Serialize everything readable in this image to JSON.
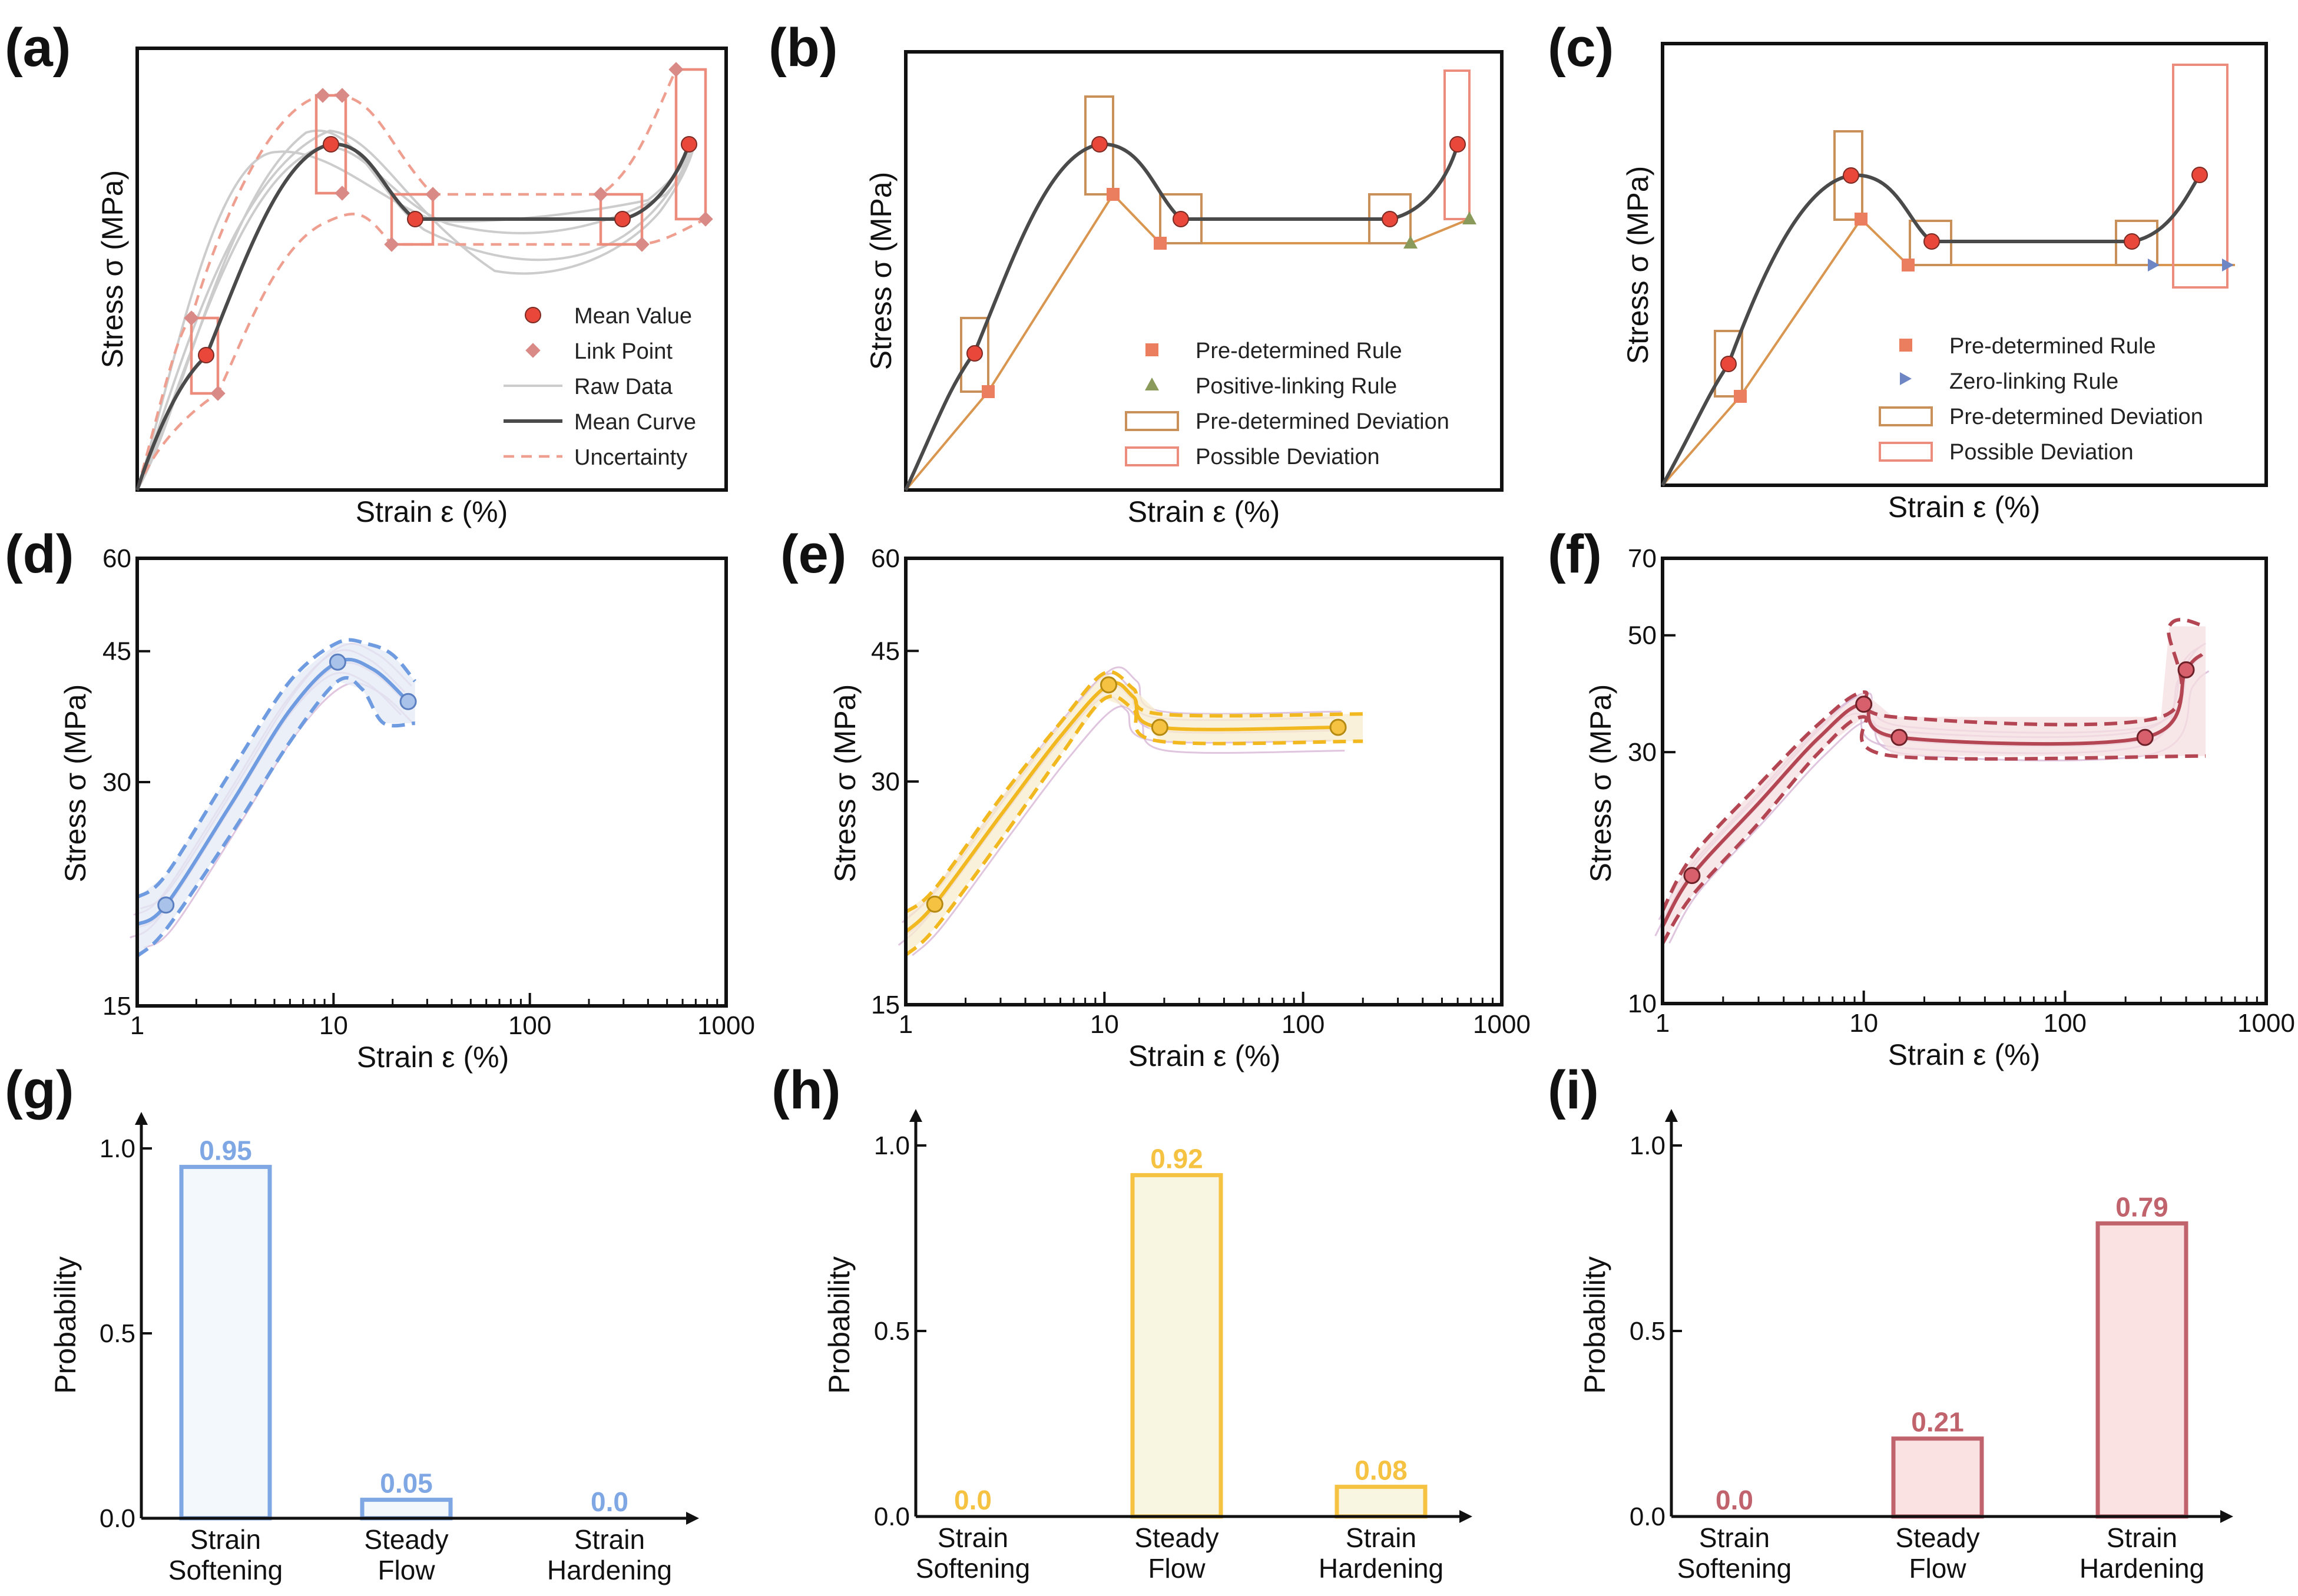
{
  "panels": {
    "a": {
      "label": "(a)",
      "xlabel": "Strain ε (%)",
      "ylabel": "Stress σ (MPa)",
      "legend": [
        "Mean Value",
        "Link Point",
        "Raw Data",
        "Mean Curve",
        "Uncertainty"
      ]
    },
    "b": {
      "label": "(b)",
      "xlabel": "Strain ε (%)",
      "ylabel": "Stress σ (MPa)",
      "legend": [
        "Pre-determined Rule",
        "Positive-linking Rule",
        "Pre-determined Deviation",
        "Possible Deviation"
      ]
    },
    "c": {
      "label": "(c)",
      "xlabel": "Strain ε (%)",
      "ylabel": "Stress σ (MPa)",
      "legend": [
        "Pre-determined Rule",
        "Zero-linking Rule",
        "Pre-determined Deviation",
        "Possible Deviation"
      ]
    },
    "d": {
      "label": "(d)",
      "xlabel": "Strain ε (%)",
      "ylabel": "Stress σ (MPa)"
    },
    "e": {
      "label": "(e)",
      "xlabel": "Strain ε (%)",
      "ylabel": "Stress σ (MPa)"
    },
    "f": {
      "label": "(f)",
      "xlabel": "Strain ε (%)",
      "ylabel": "Stress σ (MPa)"
    },
    "g": {
      "label": "(g)",
      "ylabel": "Probability"
    },
    "h": {
      "label": "(h)",
      "ylabel": "Probability"
    },
    "i": {
      "label": "(i)",
      "ylabel": "Probability"
    }
  },
  "colors": {
    "mean_point": "#e8473a",
    "link_point": "#d98a86",
    "raw": "#cccccc",
    "mean_curve": "#4a4a4a",
    "uncertainty": "#ee9f90",
    "rule_line": "#d89650",
    "rule_marker": "#ea7e5f",
    "positive_marker": "#8a9a5b",
    "zero_marker": "#6f86c4",
    "dev_box": "#c9905a",
    "possible_box": "#ec8c7c",
    "blue": "#6f9be0",
    "gold": "#f5c242",
    "red": "#b34652",
    "purple_raw": "#d7b7d6"
  },
  "chart_data": [
    {
      "id": "d",
      "type": "line",
      "xscale": "log",
      "yscale": "log",
      "xlim": [
        1,
        1000
      ],
      "ylim": [
        15,
        60
      ],
      "xticks": [
        "1",
        "10",
        "100",
        "1000"
      ],
      "yticks": [
        "15",
        "30",
        "45",
        "60"
      ],
      "mean_points": [
        [
          1.4,
          20.5
        ],
        [
          10.5,
          43.5
        ],
        [
          24,
          38.5
        ]
      ],
      "upper": [
        [
          1,
          21
        ],
        [
          1.4,
          22.5
        ],
        [
          3,
          31
        ],
        [
          6,
          41
        ],
        [
          10.5,
          46.2
        ],
        [
          15,
          46
        ],
        [
          20,
          44.5
        ],
        [
          26,
          41
        ]
      ],
      "lower": [
        [
          1,
          17.5
        ],
        [
          1.4,
          19
        ],
        [
          3,
          25.5
        ],
        [
          6,
          34
        ],
        [
          10.5,
          41
        ],
        [
          14,
          40
        ],
        [
          18,
          36
        ],
        [
          26,
          36
        ]
      ],
      "mean": [
        [
          1,
          19.3
        ],
        [
          1.4,
          20.5
        ],
        [
          3,
          28
        ],
        [
          6,
          37.5
        ],
        [
          10.5,
          43.5
        ],
        [
          16,
          42.5
        ],
        [
          24,
          38.5
        ]
      ]
    },
    {
      "id": "e",
      "type": "line",
      "xscale": "log",
      "yscale": "log",
      "xlim": [
        1,
        1000
      ],
      "ylim": [
        15,
        60
      ],
      "xticks": [
        "1",
        "10",
        "100",
        "1000"
      ],
      "yticks": [
        "15",
        "30",
        "45",
        "60"
      ],
      "mean_points": [
        [
          1.4,
          20.5
        ],
        [
          10.5,
          40.5
        ],
        [
          19,
          35.5
        ],
        [
          150,
          35.5
        ]
      ],
      "upper": [
        [
          1,
          20
        ],
        [
          1.4,
          21.5
        ],
        [
          3,
          28.5
        ],
        [
          6,
          36
        ],
        [
          10,
          42
        ],
        [
          14,
          40
        ],
        [
          19,
          37
        ],
        [
          200,
          37
        ]
      ],
      "lower": [
        [
          1,
          17.5
        ],
        [
          1.4,
          19
        ],
        [
          3,
          25
        ],
        [
          6,
          32.5
        ],
        [
          10,
          38.8
        ],
        [
          14,
          37.5
        ],
        [
          19,
          34
        ],
        [
          200,
          34
        ]
      ],
      "mean": [
        [
          1,
          18.8
        ],
        [
          1.4,
          20.5
        ],
        [
          3,
          27
        ],
        [
          6,
          34.5
        ],
        [
          10.5,
          40.5
        ],
        [
          14,
          39
        ],
        [
          19,
          35.5
        ],
        [
          150,
          35.5
        ]
      ]
    },
    {
      "id": "f",
      "type": "line",
      "xscale": "log",
      "yscale": "log",
      "xlim": [
        1,
        1000
      ],
      "ylim": [
        10,
        70
      ],
      "xticks": [
        "1",
        "10",
        "100",
        "1000"
      ],
      "yticks": [
        "10",
        "30",
        "50",
        "70"
      ],
      "mean_points": [
        [
          1.4,
          17.5
        ],
        [
          10,
          37
        ],
        [
          15,
          32
        ],
        [
          250,
          32
        ],
        [
          400,
          43
        ]
      ],
      "upper": [
        [
          1,
          15
        ],
        [
          1.4,
          19
        ],
        [
          3,
          26
        ],
        [
          6,
          34
        ],
        [
          10,
          39
        ],
        [
          14,
          35
        ],
        [
          300,
          35
        ],
        [
          330,
          52
        ],
        [
          500,
          52
        ]
      ],
      "lower": [
        [
          1,
          13
        ],
        [
          1.4,
          16
        ],
        [
          3,
          22
        ],
        [
          6,
          30
        ],
        [
          10,
          35
        ],
        [
          14,
          29.5
        ],
        [
          500,
          29.5
        ]
      ],
      "mean": [
        [
          1,
          14
        ],
        [
          1.4,
          17.5
        ],
        [
          3,
          24
        ],
        [
          6,
          32
        ],
        [
          10,
          37
        ],
        [
          15,
          32
        ],
        [
          250,
          32
        ],
        [
          400,
          43
        ],
        [
          480,
          46
        ]
      ]
    },
    {
      "id": "g",
      "type": "bar",
      "categories": [
        "Strain\nSoftening",
        "Steady\nFlow",
        "Strain\nHardening"
      ],
      "values": [
        0.95,
        0.05,
        0.0
      ],
      "labels": [
        "0.95",
        "0.05",
        "0.0"
      ],
      "ylim": [
        0,
        1.0
      ],
      "yticks": [
        "0.0",
        "0.5",
        "1.0"
      ],
      "color": "#7ea7e4"
    },
    {
      "id": "h",
      "type": "bar",
      "categories": [
        "Strain\nSoftening",
        "Steady\nFlow",
        "Strain\nHardening"
      ],
      "values": [
        0.0,
        0.92,
        0.08
      ],
      "labels": [
        "0.0",
        "0.92",
        "0.08"
      ],
      "ylim": [
        0,
        1.0
      ],
      "yticks": [
        "0.0",
        "0.5",
        "1.0"
      ],
      "color": "#f5c242"
    },
    {
      "id": "i",
      "type": "bar",
      "categories": [
        "Strain\nSoftening",
        "Steady\nFlow",
        "Strain\nHardening"
      ],
      "values": [
        0.0,
        0.21,
        0.79
      ],
      "labels": [
        "0.0",
        "0.21",
        "0.79"
      ],
      "ylim": [
        0,
        1.0
      ],
      "yticks": [
        "0.0",
        "0.5",
        "1.0"
      ],
      "color": "#c0636c"
    }
  ]
}
